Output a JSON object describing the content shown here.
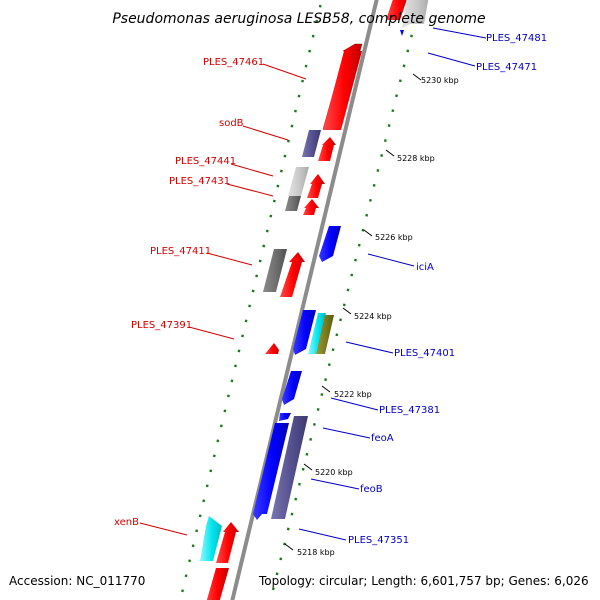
{
  "title": "Pseudomonas aeruginosa LESB58, complete genome",
  "footer": {
    "accession": "Accession: NC_011770",
    "summary": "Topology: circular; Length: 6,601,757 bp; Genes: 6,026"
  },
  "colors": {
    "left_label": "#d40000",
    "right_label": "#0000c8",
    "backbone": "#8c8c8c",
    "dots": "#1a7a1a",
    "red": "#ff0000",
    "blue": "#0000ff",
    "purple": "#55508f",
    "light_gray": "#c8c8c8",
    "dark_gray": "#6e6e6e",
    "cyan": "#00e5ee",
    "olive": "#7a7a1e"
  },
  "left_labels": [
    {
      "text": "PLES_47461"
    },
    {
      "text": "sodB"
    },
    {
      "text": "PLES_47441"
    },
    {
      "text": "PLES_47431"
    },
    {
      "text": "PLES_47411"
    },
    {
      "text": "PLES_47391"
    },
    {
      "text": "xenB"
    }
  ],
  "right_labels": [
    {
      "text": "PLES_47481"
    },
    {
      "text": "PLES_47471"
    },
    {
      "text": "iciA"
    },
    {
      "text": "PLES_47401"
    },
    {
      "text": "PLES_47381"
    },
    {
      "text": "feoA"
    },
    {
      "text": "feoB"
    },
    {
      "text": "PLES_47351"
    }
  ],
  "ticks": [
    {
      "text": "5230 kbp"
    },
    {
      "text": "5228 kbp"
    },
    {
      "text": "5226 kbp"
    },
    {
      "text": "5224 kbp"
    },
    {
      "text": "5222 kbp"
    },
    {
      "text": "5220 kbp"
    },
    {
      "text": "5218 kbp"
    }
  ]
}
